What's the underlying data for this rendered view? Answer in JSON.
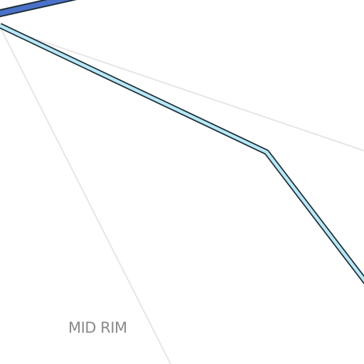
{
  "map": {
    "labels": {
      "area": "MID RIM"
    },
    "colors": {
      "background": "#ffffff",
      "guide_line": "#e6e6e6",
      "route_casing": "#1f2f3a",
      "route_dark_blue": "#4a72c9",
      "route_light_blue": "#b8e8f5",
      "label_text": "#8a8a8a"
    }
  }
}
